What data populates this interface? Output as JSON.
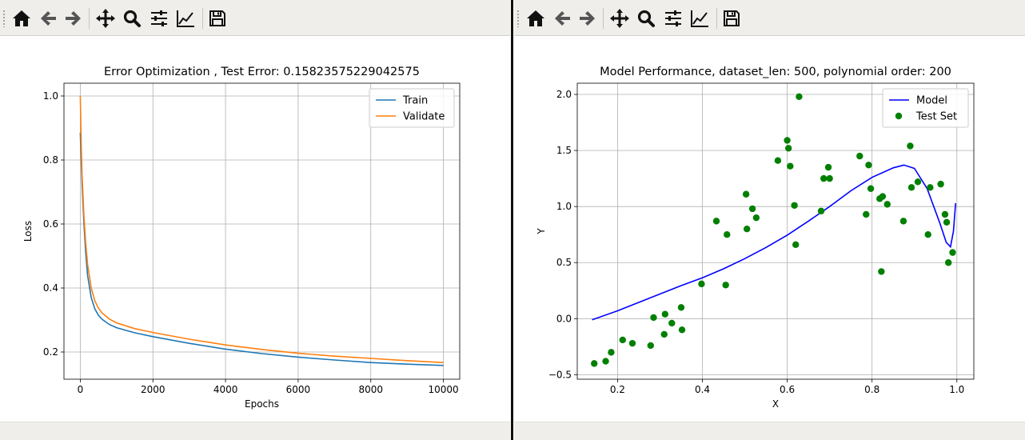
{
  "toolbar": {
    "buttons": [
      {
        "name": "home-button",
        "icon": "home-icon"
      },
      {
        "name": "back-button",
        "icon": "arrow-left-icon"
      },
      {
        "name": "forward-button",
        "icon": "arrow-right-icon"
      },
      {
        "name": "pan-button",
        "icon": "move-icon"
      },
      {
        "name": "zoom-button",
        "icon": "magnifier-icon"
      },
      {
        "name": "subplots-button",
        "icon": "sliders-icon"
      },
      {
        "name": "edit-axes-button",
        "icon": "line-chart-icon"
      },
      {
        "name": "save-button",
        "icon": "floppy-disk-icon"
      }
    ]
  },
  "chart_data": [
    {
      "type": "line",
      "title": "Error Optimization , Test Error: 0.15823575229042575",
      "xlabel": "Epochs",
      "ylabel": "Loss",
      "xlim": [
        -450,
        10450
      ],
      "ylim": [
        0.115,
        1.04
      ],
      "xticks": [
        0,
        2000,
        4000,
        6000,
        8000,
        10000
      ],
      "xtick_labels": [
        "0",
        "2000",
        "4000",
        "6000",
        "8000",
        "10000"
      ],
      "yticks": [
        0.2,
        0.4,
        0.6,
        0.8,
        1.0
      ],
      "ytick_labels": [
        "0.2",
        "0.4",
        "0.6",
        "0.8",
        "1.0"
      ],
      "grid": true,
      "legend": "upper right",
      "series": [
        {
          "name": "Train",
          "color": "#1f77b4",
          "x": [
            0,
            25,
            50,
            100,
            150,
            200,
            300,
            400,
            500,
            600,
            800,
            1000,
            1500,
            2000,
            3000,
            4000,
            5000,
            6000,
            7000,
            8000,
            9000,
            10000
          ],
          "y": [
            0.885,
            0.8,
            0.72,
            0.6,
            0.51,
            0.44,
            0.37,
            0.335,
            0.315,
            0.302,
            0.286,
            0.276,
            0.26,
            0.248,
            0.227,
            0.209,
            0.195,
            0.184,
            0.175,
            0.167,
            0.162,
            0.158
          ]
        },
        {
          "name": "Validate",
          "color": "#ff7f0e",
          "x": [
            0,
            25,
            50,
            100,
            150,
            200,
            300,
            400,
            500,
            600,
            800,
            1000,
            1500,
            2000,
            3000,
            4000,
            5000,
            6000,
            7000,
            8000,
            9000,
            10000
          ],
          "y": [
            1.0,
            0.85,
            0.75,
            0.625,
            0.54,
            0.475,
            0.4,
            0.36,
            0.337,
            0.322,
            0.303,
            0.291,
            0.273,
            0.261,
            0.24,
            0.222,
            0.208,
            0.196,
            0.187,
            0.18,
            0.173,
            0.167
          ]
        }
      ]
    },
    {
      "type": "scatter",
      "title": "Model Performance, dataset_len: 500, polynomial order: 200",
      "xlabel": "X",
      "ylabel": "Y",
      "xlim": [
        0.105,
        1.04
      ],
      "ylim": [
        -0.54,
        2.1
      ],
      "xticks": [
        0.2,
        0.4,
        0.6,
        0.8,
        1.0
      ],
      "xtick_labels": [
        "0.2",
        "0.4",
        "0.6",
        "0.8",
        "1.0"
      ],
      "yticks": [
        -0.5,
        0.0,
        0.5,
        1.0,
        1.5,
        2.0
      ],
      "ytick_labels": [
        "−0.5",
        "0.0",
        "0.5",
        "1.0",
        "1.5",
        "2.0"
      ],
      "grid": true,
      "legend": "upper right",
      "series": [
        {
          "name": "Model",
          "type": "line",
          "color": "#0000ff",
          "x": [
            0.14,
            0.2,
            0.25,
            0.3,
            0.35,
            0.4,
            0.45,
            0.5,
            0.55,
            0.6,
            0.65,
            0.7,
            0.75,
            0.8,
            0.85,
            0.875,
            0.9,
            0.93,
            0.96,
            0.975,
            0.985,
            0.992,
            0.997
          ],
          "y": [
            -0.01,
            0.07,
            0.145,
            0.22,
            0.295,
            0.365,
            0.445,
            0.535,
            0.635,
            0.745,
            0.87,
            1.0,
            1.14,
            1.26,
            1.345,
            1.37,
            1.34,
            1.16,
            0.85,
            0.68,
            0.64,
            0.78,
            1.03
          ]
        },
        {
          "name": "Test Set",
          "type": "scatter",
          "color": "#008000",
          "x": [
            0.145,
            0.172,
            0.185,
            0.212,
            0.235,
            0.278,
            0.285,
            0.31,
            0.312,
            0.328,
            0.35,
            0.352,
            0.398,
            0.433,
            0.455,
            0.458,
            0.503,
            0.505,
            0.518,
            0.527,
            0.578,
            0.6,
            0.603,
            0.607,
            0.617,
            0.62,
            0.628,
            0.68,
            0.686,
            0.697,
            0.7,
            0.771,
            0.786,
            0.792,
            0.797,
            0.818,
            0.822,
            0.825,
            0.836,
            0.874,
            0.89,
            0.893,
            0.908,
            0.932,
            0.937,
            0.962,
            0.972,
            0.976,
            0.98,
            0.99
          ],
          "y": [
            -0.4,
            -0.38,
            -0.3,
            -0.19,
            -0.22,
            -0.24,
            0.01,
            -0.14,
            0.04,
            -0.04,
            0.1,
            -0.1,
            0.31,
            0.87,
            0.3,
            0.75,
            1.11,
            0.8,
            0.98,
            0.9,
            1.41,
            1.59,
            1.52,
            1.36,
            1.01,
            0.66,
            1.98,
            0.96,
            1.25,
            1.35,
            1.25,
            1.45,
            0.93,
            1.37,
            1.16,
            1.07,
            0.42,
            1.09,
            1.02,
            0.87,
            1.54,
            1.17,
            1.22,
            0.75,
            1.17,
            1.2,
            0.93,
            0.86,
            0.5,
            0.59
          ]
        }
      ]
    }
  ]
}
